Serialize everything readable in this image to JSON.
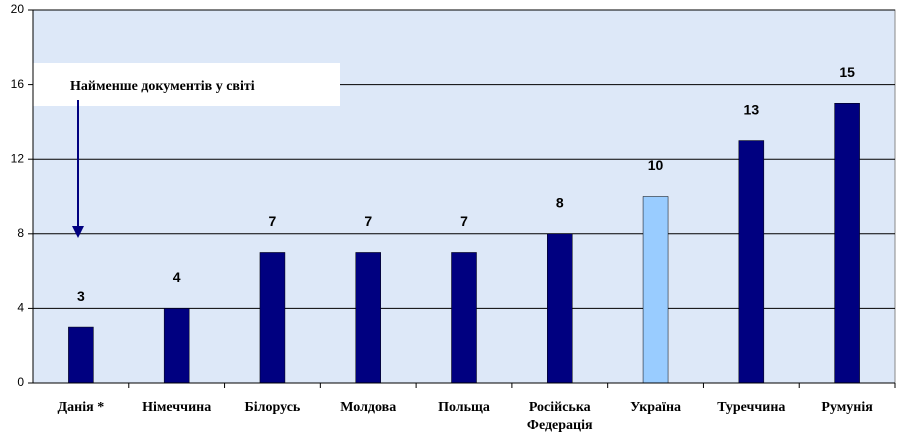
{
  "chart_data": {
    "type": "bar",
    "categories": [
      "Данія *",
      "Німеччина",
      "Білорусь",
      "Молдова",
      "Польща",
      "Російська Федерація",
      "Україна",
      "Туреччина",
      "Румунія"
    ],
    "values": [
      3,
      4,
      7,
      7,
      7,
      8,
      10,
      13,
      15
    ],
    "colors": [
      "#000080",
      "#000080",
      "#000080",
      "#000080",
      "#000080",
      "#000080",
      "#99ccff",
      "#000080",
      "#000080"
    ],
    "ylim": [
      0,
      20
    ],
    "yticks": [
      0,
      4,
      8,
      12,
      16,
      20
    ],
    "grid": true,
    "annotation": "Найменше документів у світі"
  }
}
